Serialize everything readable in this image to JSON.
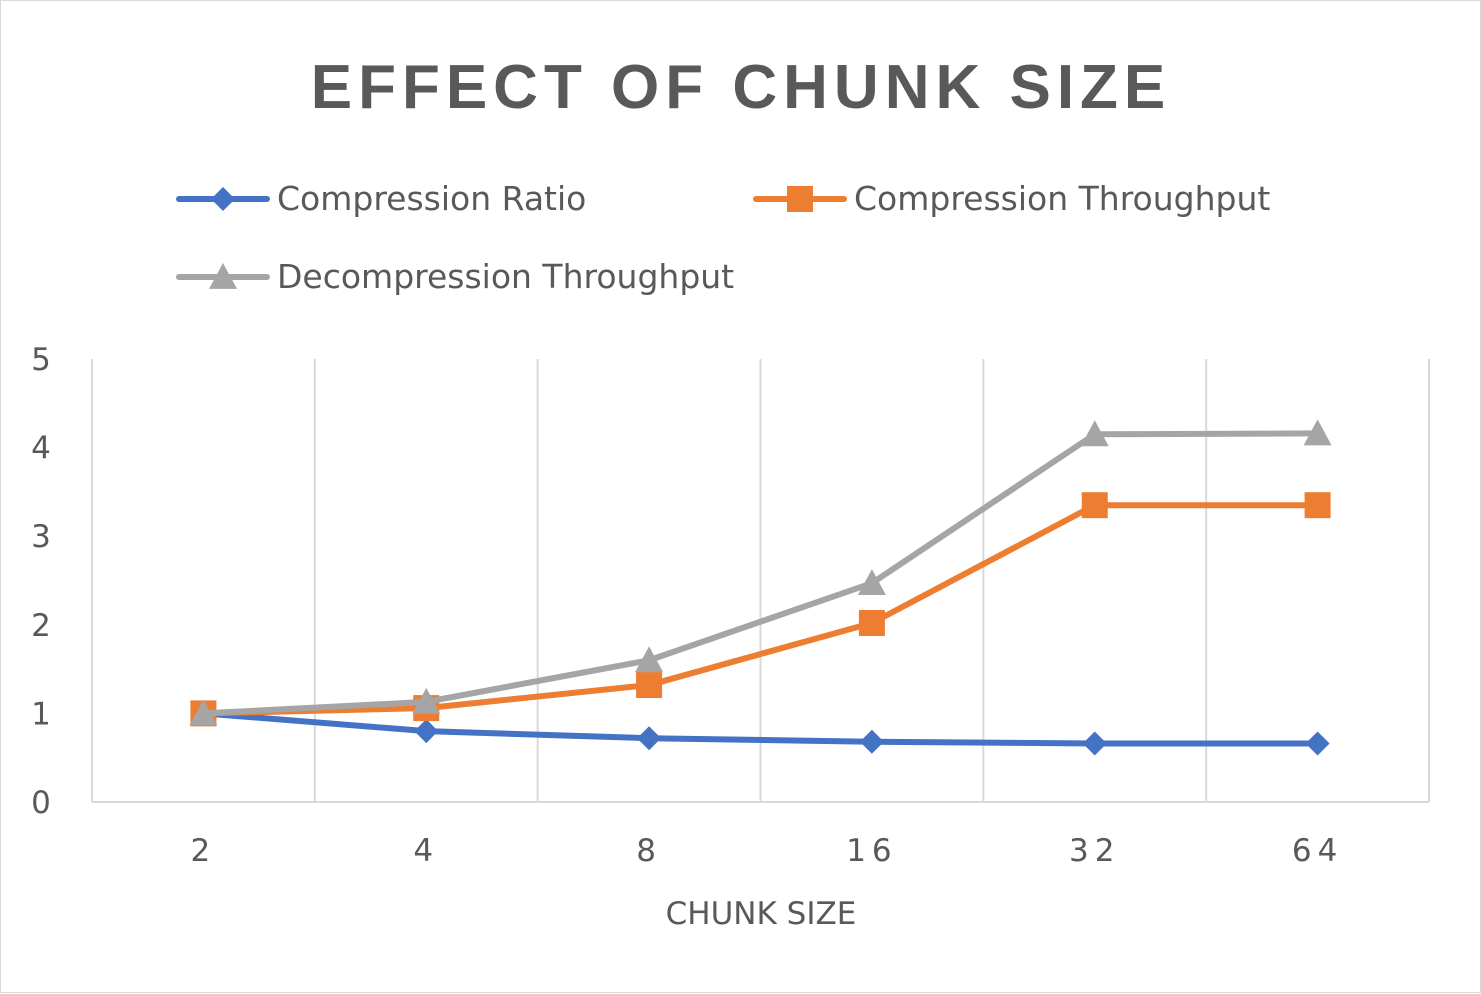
{
  "chart_data": {
    "type": "line",
    "title": "EFFECT OF CHUNK SIZE",
    "xlabel": "CHUNK SIZE",
    "ylabel": "",
    "categories": [
      "2",
      "4",
      "8",
      "16",
      "32",
      "64"
    ],
    "ylim": [
      0,
      5
    ],
    "yticks": [
      "0",
      "1",
      "2",
      "3",
      "4",
      "5"
    ],
    "grid": "vertical",
    "legend_position": "top",
    "series": [
      {
        "name": "Compression Ratio",
        "color": "#4472c4",
        "marker": "diamond",
        "values": [
          1.0,
          0.8,
          0.72,
          0.68,
          0.66,
          0.66
        ]
      },
      {
        "name": "Compression Throughput",
        "color": "#ed7d31",
        "marker": "square",
        "values": [
          1.0,
          1.06,
          1.32,
          2.02,
          3.35,
          3.35
        ]
      },
      {
        "name": "Decompression Throughput",
        "color": "#a5a5a5",
        "marker": "triangle",
        "values": [
          1.0,
          1.13,
          1.6,
          2.47,
          4.15,
          4.16
        ]
      }
    ]
  }
}
